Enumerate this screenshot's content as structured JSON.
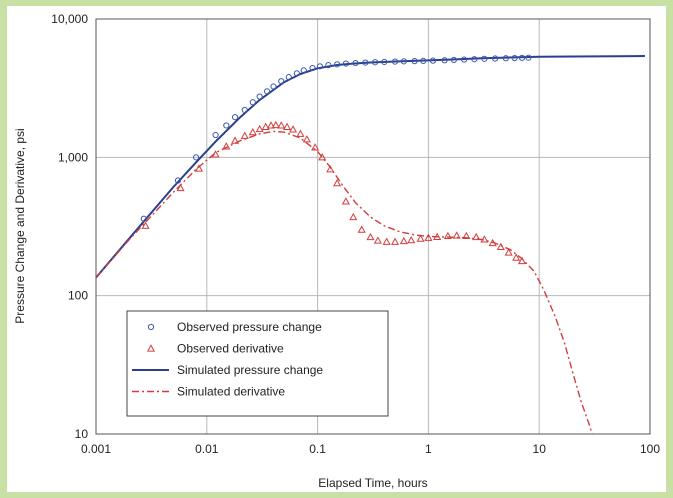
{
  "chart_data": {
    "type": "line",
    "title": "",
    "xlabel": "Elapsed Time, hours",
    "ylabel": "Pressure Change and Derivative, psi",
    "xscale": "log",
    "yscale": "log",
    "xlim": [
      0.001,
      100
    ],
    "ylim": [
      10,
      10000
    ],
    "grid": true,
    "legend_position": "bottom-left",
    "x_ticks": [
      {
        "value": 0.001,
        "label": "0.001"
      },
      {
        "value": 0.01,
        "label": "0.01"
      },
      {
        "value": 0.1,
        "label": "0.1"
      },
      {
        "value": 1,
        "label": "1"
      },
      {
        "value": 10,
        "label": "10"
      },
      {
        "value": 100,
        "label": "100"
      }
    ],
    "y_ticks": [
      {
        "value": 10,
        "label": "10"
      },
      {
        "value": 100,
        "label": "100"
      },
      {
        "value": 1000,
        "label": "1,000"
      },
      {
        "value": 10000,
        "label": "10,000"
      }
    ],
    "series": [
      {
        "name": "Observed pressure change",
        "kind": "markers",
        "marker": "circle",
        "color": "#3d5aa8",
        "x": [
          0.0027,
          0.0055,
          0.008,
          0.012,
          0.015,
          0.018,
          0.022,
          0.026,
          0.03,
          0.035,
          0.04,
          0.047,
          0.055,
          0.065,
          0.075,
          0.09,
          0.105,
          0.125,
          0.15,
          0.18,
          0.22,
          0.27,
          0.33,
          0.4,
          0.5,
          0.6,
          0.75,
          0.9,
          1.1,
          1.4,
          1.7,
          2.1,
          2.6,
          3.2,
          4.0,
          5.0,
          6.0,
          7.0,
          8.0
        ],
        "y": [
          360,
          680,
          1000,
          1450,
          1700,
          1950,
          2200,
          2500,
          2750,
          3000,
          3250,
          3550,
          3800,
          4050,
          4250,
          4420,
          4550,
          4640,
          4700,
          4760,
          4800,
          4840,
          4870,
          4890,
          4920,
          4940,
          4960,
          4980,
          5000,
          5030,
          5060,
          5090,
          5120,
          5150,
          5180,
          5200,
          5220,
          5240,
          5250
        ]
      },
      {
        "name": "Observed derivative",
        "kind": "markers",
        "marker": "triangle",
        "color": "#d43c3c",
        "x": [
          0.0028,
          0.0058,
          0.0085,
          0.012,
          0.015,
          0.018,
          0.022,
          0.026,
          0.03,
          0.034,
          0.038,
          0.042,
          0.047,
          0.053,
          0.06,
          0.07,
          0.08,
          0.095,
          0.11,
          0.13,
          0.15,
          0.18,
          0.21,
          0.25,
          0.3,
          0.35,
          0.42,
          0.5,
          0.6,
          0.7,
          0.85,
          1.0,
          1.2,
          1.5,
          1.8,
          2.2,
          2.7,
          3.2,
          3.8,
          4.5,
          5.3,
          6.2,
          7.0
        ],
        "y": [
          320,
          600,
          830,
          1050,
          1200,
          1320,
          1430,
          1520,
          1600,
          1660,
          1700,
          1710,
          1700,
          1660,
          1590,
          1480,
          1350,
          1180,
          1000,
          820,
          650,
          480,
          370,
          300,
          265,
          250,
          245,
          245,
          248,
          252,
          258,
          262,
          266,
          270,
          272,
          270,
          265,
          255,
          240,
          225,
          205,
          188,
          178
        ]
      },
      {
        "name": "Simulated pressure change",
        "kind": "line",
        "color": "#2a3f8f",
        "x": [
          0.001,
          0.002,
          0.003,
          0.005,
          0.008,
          0.012,
          0.02,
          0.03,
          0.05,
          0.07,
          0.1,
          0.15,
          0.2,
          0.3,
          0.5,
          1,
          2,
          3,
          5,
          8,
          10,
          20,
          50,
          90
        ],
        "y": [
          135,
          260,
          380,
          610,
          920,
          1300,
          1950,
          2600,
          3500,
          4000,
          4400,
          4650,
          4750,
          4850,
          4930,
          5020,
          5130,
          5200,
          5260,
          5310,
          5330,
          5360,
          5380,
          5400
        ]
      },
      {
        "name": "Simulated derivative",
        "kind": "line",
        "dash": "dash-dot",
        "color": "#d43c3c",
        "x": [
          0.001,
          0.002,
          0.003,
          0.005,
          0.008,
          0.012,
          0.02,
          0.03,
          0.04,
          0.05,
          0.07,
          0.1,
          0.13,
          0.17,
          0.22,
          0.3,
          0.4,
          0.55,
          0.75,
          1.0,
          1.3,
          1.7,
          2.2,
          3.0,
          4.0,
          5.5,
          7.0,
          9.0,
          11,
          14,
          17,
          20,
          24,
          28,
          30
        ],
        "y": [
          135,
          255,
          360,
          560,
          820,
          1080,
          1320,
          1480,
          1540,
          1520,
          1380,
          1100,
          850,
          620,
          470,
          370,
          320,
          290,
          275,
          268,
          266,
          264,
          262,
          255,
          240,
          215,
          185,
          150,
          110,
          70,
          45,
          28,
          17,
          12,
          10
        ]
      }
    ],
    "legend": [
      {
        "label": "Observed pressure change",
        "symbol": "circle",
        "color": "#3d5aa8"
      },
      {
        "label": "Observed derivative",
        "symbol": "triangle",
        "color": "#d43c3c"
      },
      {
        "label": "Simulated pressure change",
        "symbol": "line",
        "color": "#2a3f8f"
      },
      {
        "label": "Simulated derivative",
        "symbol": "dashdot",
        "color": "#d43c3c"
      }
    ]
  }
}
